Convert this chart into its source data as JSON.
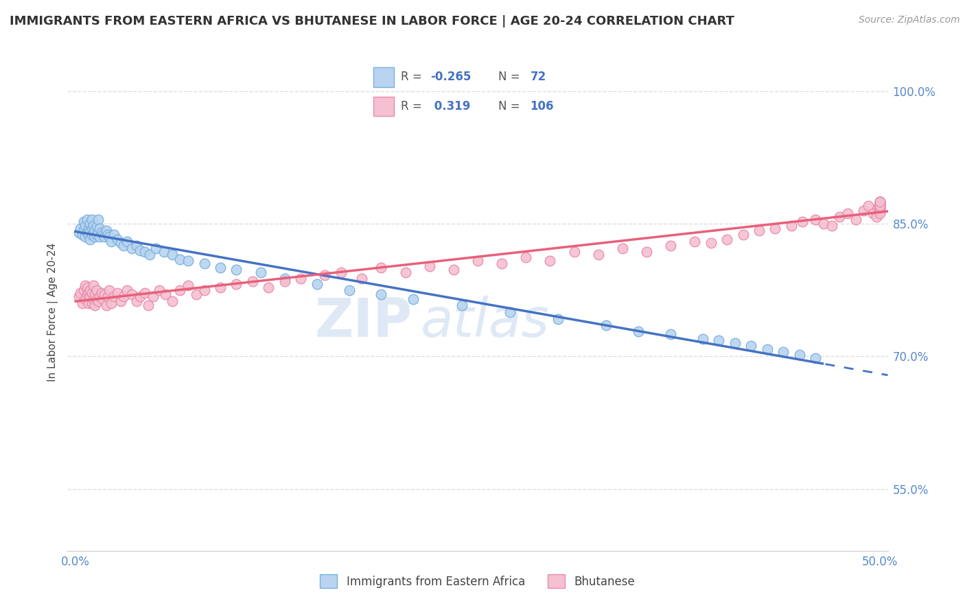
{
  "title": "IMMIGRANTS FROM EASTERN AFRICA VS BHUTANESE IN LABOR FORCE | AGE 20-24 CORRELATION CHART",
  "source": "Source: ZipAtlas.com",
  "ylabel": "In Labor Force | Age 20-24",
  "xlim": [
    -0.005,
    0.505
  ],
  "ylim": [
    0.48,
    1.02
  ],
  "xtick_positions": [
    0.0,
    0.5
  ],
  "xtick_labels": [
    "0.0%",
    "50.0%"
  ],
  "ytick_positions": [
    0.55,
    0.7,
    0.85,
    1.0
  ],
  "ytick_labels": [
    "55.0%",
    "70.0%",
    "85.0%",
    "100.0%"
  ],
  "blue_color": "#b8d4f0",
  "blue_edge": "#7aaedd",
  "pink_color": "#f5c0d0",
  "pink_edge": "#e88aaa",
  "blue_line_color": "#4472c4",
  "pink_line_color": "#e8607a",
  "R_blue": -0.265,
  "N_blue": 72,
  "R_pink": 0.319,
  "N_pink": 106,
  "legend1": "Immigrants from Eastern Africa",
  "legend2": "Bhutanese",
  "watermark_zip": "ZIP",
  "watermark_atlas": "atlas",
  "grid_color": "#dddddd",
  "blue_scatter_x": [
    0.002,
    0.003,
    0.004,
    0.005,
    0.005,
    0.006,
    0.006,
    0.007,
    0.007,
    0.008,
    0.008,
    0.009,
    0.009,
    0.009,
    0.01,
    0.01,
    0.01,
    0.011,
    0.011,
    0.012,
    0.012,
    0.013,
    0.013,
    0.014,
    0.014,
    0.015,
    0.015,
    0.016,
    0.017,
    0.018,
    0.019,
    0.02,
    0.021,
    0.022,
    0.024,
    0.026,
    0.028,
    0.03,
    0.032,
    0.035,
    0.038,
    0.04,
    0.043,
    0.046,
    0.05,
    0.055,
    0.06,
    0.065,
    0.07,
    0.08,
    0.09,
    0.1,
    0.115,
    0.13,
    0.15,
    0.17,
    0.19,
    0.21,
    0.24,
    0.27,
    0.3,
    0.33,
    0.35,
    0.37,
    0.39,
    0.4,
    0.41,
    0.42,
    0.43,
    0.44,
    0.45,
    0.46
  ],
  "blue_scatter_y": [
    0.84,
    0.845,
    0.838,
    0.843,
    0.852,
    0.835,
    0.848,
    0.84,
    0.855,
    0.838,
    0.845,
    0.832,
    0.842,
    0.85,
    0.838,
    0.845,
    0.855,
    0.84,
    0.848,
    0.835,
    0.843,
    0.838,
    0.847,
    0.84,
    0.855,
    0.835,
    0.845,
    0.84,
    0.838,
    0.835,
    0.842,
    0.838,
    0.835,
    0.83,
    0.838,
    0.832,
    0.828,
    0.825,
    0.83,
    0.822,
    0.825,
    0.82,
    0.818,
    0.815,
    0.822,
    0.818,
    0.815,
    0.81,
    0.808,
    0.805,
    0.8,
    0.798,
    0.795,
    0.788,
    0.782,
    0.775,
    0.77,
    0.765,
    0.758,
    0.75,
    0.742,
    0.735,
    0.728,
    0.725,
    0.72,
    0.718,
    0.715,
    0.712,
    0.708,
    0.705,
    0.702,
    0.698
  ],
  "pink_scatter_x": [
    0.002,
    0.003,
    0.004,
    0.005,
    0.006,
    0.006,
    0.007,
    0.007,
    0.008,
    0.008,
    0.009,
    0.009,
    0.01,
    0.01,
    0.011,
    0.011,
    0.012,
    0.012,
    0.013,
    0.013,
    0.014,
    0.015,
    0.016,
    0.017,
    0.018,
    0.019,
    0.02,
    0.021,
    0.022,
    0.024,
    0.026,
    0.028,
    0.03,
    0.032,
    0.035,
    0.038,
    0.04,
    0.043,
    0.045,
    0.048,
    0.052,
    0.056,
    0.06,
    0.065,
    0.07,
    0.075,
    0.08,
    0.09,
    0.1,
    0.11,
    0.12,
    0.13,
    0.14,
    0.155,
    0.165,
    0.178,
    0.19,
    0.205,
    0.22,
    0.235,
    0.25,
    0.265,
    0.28,
    0.295,
    0.31,
    0.325,
    0.34,
    0.355,
    0.37,
    0.385,
    0.395,
    0.405,
    0.415,
    0.425,
    0.435,
    0.445,
    0.452,
    0.46,
    0.465,
    0.47,
    0.475,
    0.48,
    0.485,
    0.49,
    0.493,
    0.496,
    0.498,
    0.499,
    0.5,
    0.5,
    0.5,
    0.5,
    0.5,
    0.5,
    0.5,
    0.5,
    0.5,
    0.5,
    0.5,
    0.5,
    0.5,
    0.5,
    0.5,
    0.5,
    0.5,
    0.5
  ],
  "pink_scatter_y": [
    0.768,
    0.772,
    0.76,
    0.775,
    0.765,
    0.78,
    0.77,
    0.778,
    0.76,
    0.772,
    0.768,
    0.775,
    0.76,
    0.772,
    0.765,
    0.78,
    0.758,
    0.77,
    0.765,
    0.775,
    0.762,
    0.768,
    0.772,
    0.765,
    0.77,
    0.758,
    0.768,
    0.775,
    0.76,
    0.768,
    0.772,
    0.762,
    0.768,
    0.775,
    0.77,
    0.762,
    0.768,
    0.772,
    0.758,
    0.768,
    0.775,
    0.77,
    0.762,
    0.775,
    0.78,
    0.77,
    0.775,
    0.778,
    0.782,
    0.785,
    0.778,
    0.785,
    0.788,
    0.792,
    0.795,
    0.788,
    0.8,
    0.795,
    0.802,
    0.798,
    0.808,
    0.805,
    0.812,
    0.808,
    0.818,
    0.815,
    0.822,
    0.818,
    0.825,
    0.83,
    0.828,
    0.832,
    0.838,
    0.842,
    0.845,
    0.848,
    0.852,
    0.855,
    0.85,
    0.848,
    0.858,
    0.862,
    0.855,
    0.865,
    0.87,
    0.862,
    0.858,
    0.868,
    0.872,
    0.865,
    0.875,
    0.87,
    0.868,
    0.875,
    0.872,
    0.865,
    0.87,
    0.875,
    0.868,
    0.872,
    0.87,
    0.875,
    0.868,
    0.862,
    0.87,
    0.875
  ]
}
